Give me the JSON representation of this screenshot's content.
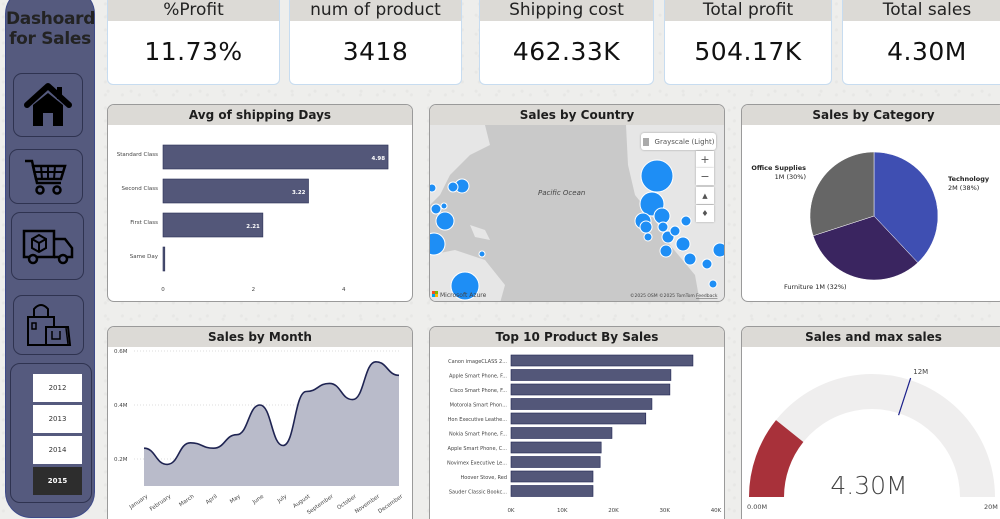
{
  "sidebar": {
    "title_line1": "Dashoard",
    "title_line2": "for Sales",
    "nav": [
      {
        "name": "home",
        "icon": "home-icon"
      },
      {
        "name": "cart",
        "icon": "shopping-cart-icon"
      },
      {
        "name": "delivery",
        "icon": "delivery-truck-icon"
      },
      {
        "name": "shopping",
        "icon": "shopping-bags-icon"
      }
    ],
    "years": [
      {
        "label": "2012",
        "selected": false
      },
      {
        "label": "2013",
        "selected": false
      },
      {
        "label": "2014",
        "selected": false
      },
      {
        "label": "2015",
        "selected": true
      }
    ]
  },
  "kpis": [
    {
      "label": "%Profit",
      "value": "11.73%"
    },
    {
      "label": "num of product",
      "value": "3418"
    },
    {
      "label": "Shipping cost",
      "value": "462.33K"
    },
    {
      "label": "Total profit",
      "value": "504.17K"
    },
    {
      "label": "Total sales",
      "value": "4.30M"
    }
  ],
  "panels": {
    "shipping": {
      "title": "Avg of shipping Days"
    },
    "country": {
      "title": "Sales by Country",
      "map_style": "Grayscale (Light)",
      "ocean_label": "Pacific Ocean",
      "attribution": "©2025 OSM ©2025 TomTom",
      "feedback": "Feedback",
      "provider": "Microsoft Azure",
      "zoom_in": "+",
      "zoom_out": "−"
    },
    "category": {
      "title": "Sales by Category"
    },
    "month": {
      "title": "Sales by Month"
    },
    "top10": {
      "title": "Top 10 Product By Sales"
    },
    "gauge": {
      "title": "Sales and max sales"
    }
  },
  "colors": {
    "sidebar": "#555a7e",
    "bar": "#535779",
    "bubble": "#1e8ef5",
    "tech": "#3f4fb2",
    "furniture": "#3a2560",
    "office": "#666666",
    "gauge_fill": "#a8313a",
    "gauge_track": "#efeeee",
    "target": "#1a1f8a"
  },
  "chart_data": [
    {
      "type": "bar",
      "orientation": "horizontal",
      "title": "Avg of shipping Days",
      "categories": [
        "Standard Class",
        "Second Class",
        "First Class",
        "Same Day"
      ],
      "values": [
        4.98,
        3.22,
        2.21,
        0.04
      ],
      "data_labels": [
        "4.98",
        "3.22",
        "2.21",
        ""
      ],
      "xlim": [
        0,
        5.2
      ],
      "xticks": [
        "0",
        "2",
        "4"
      ]
    },
    {
      "type": "pie",
      "title": "Sales by Category",
      "slices": [
        {
          "name": "Technology",
          "value": 38,
          "label": "Technology",
          "sublabel": "2M (38%)"
        },
        {
          "name": "Furniture",
          "value": 32,
          "label": "Furniture 1M (32%)",
          "sublabel": ""
        },
        {
          "name": "Office Supplies",
          "value": 30,
          "label": "Office Supplies",
          "sublabel": "1M (30%)"
        }
      ]
    },
    {
      "type": "area",
      "title": "Sales by Month",
      "categories": [
        "January",
        "February",
        "March",
        "April",
        "May",
        "June",
        "July",
        "August",
        "September",
        "October",
        "November",
        "December"
      ],
      "values": [
        0.24,
        0.18,
        0.26,
        0.24,
        0.29,
        0.4,
        0.25,
        0.45,
        0.48,
        0.42,
        0.56,
        0.51
      ],
      "ylim": [
        0.1,
        0.6
      ],
      "yticks": [
        "0.2M",
        "0.4M",
        "0.6M"
      ],
      "ytick_values": [
        0.2,
        0.4,
        0.6
      ],
      "grid": true
    },
    {
      "type": "bar",
      "orientation": "horizontal",
      "title": "Top 10 Product By Sales",
      "categories": [
        "Canon imageCLASS 2...",
        "Apple Smart Phone, F...",
        "Cisco Smart Phone, F...",
        "Motorola Smart Phon...",
        "Hon Executive Leathe...",
        "Nokia Smart Phone, F...",
        "Apple Smart Phone, C...",
        "Novimex Executive Le...",
        "Hoover Stove, Red",
        "Sauder Classic Bookc..."
      ],
      "values": [
        35.5,
        31.2,
        31.0,
        27.5,
        26.3,
        19.7,
        17.6,
        17.4,
        16.0,
        16.0
      ],
      "units": "K",
      "xlim": [
        0,
        40
      ],
      "xticks": [
        "0K",
        "10K",
        "20K",
        "30K",
        "40K"
      ]
    },
    {
      "type": "gauge",
      "title": "Sales and max sales",
      "value": 4.3,
      "value_label": "4.30M",
      "min": 0,
      "min_label": "0.00M",
      "max": 20,
      "max_label": "20M",
      "target": 12,
      "target_label": "12M"
    }
  ]
}
